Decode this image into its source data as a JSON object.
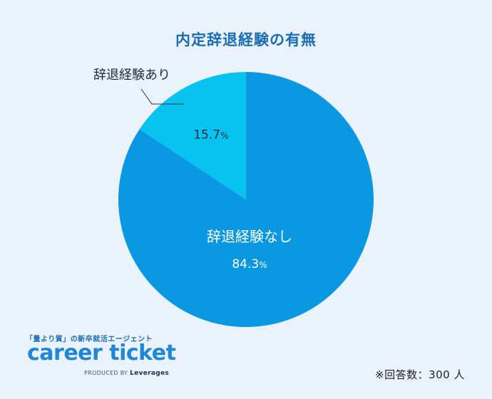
{
  "chart_data": {
    "type": "pie",
    "title": "内定辞退経験の有無",
    "slices": [
      {
        "label": "辞退経験あり",
        "value": 15.7,
        "display": "15.7",
        "color": "#08c2ef"
      },
      {
        "label": "辞退経験なし",
        "value": 84.3,
        "display": "84.3",
        "color": "#0b98e2"
      }
    ],
    "unit": "%",
    "note": "※回答数：300 人"
  },
  "branding": {
    "tagline": "「量より質」の新卒就活エージェント",
    "logo_text": "career ticket",
    "byline_prefix": "PRODUCED BY",
    "byline_brand": "Leverages"
  }
}
